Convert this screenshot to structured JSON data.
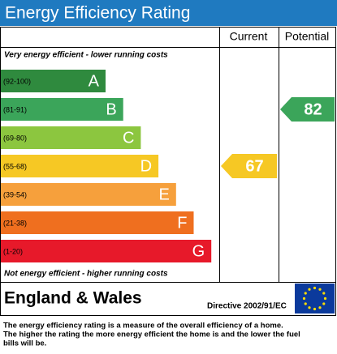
{
  "title": "Energy Efficiency Rating",
  "columns": {
    "current": "Current",
    "potential": "Potential"
  },
  "top_note": "Very energy efficient - lower running costs",
  "bottom_note": "Not energy efficient - higher running costs",
  "bands": [
    {
      "range": "(92-100)",
      "letter": "A",
      "color": "#2f8a3e"
    },
    {
      "range": "(81-91)",
      "letter": "B",
      "color": "#3ba55a"
    },
    {
      "range": "(69-80)",
      "letter": "C",
      "color": "#8cc63f"
    },
    {
      "range": "(55-68)",
      "letter": "D",
      "color": "#f6c824"
    },
    {
      "range": "(39-54)",
      "letter": "E",
      "color": "#f6a03c"
    },
    {
      "range": "(21-38)",
      "letter": "F",
      "color": "#ef6f1f"
    },
    {
      "range": "(1-20)",
      "letter": "G",
      "color": "#e7192a"
    }
  ],
  "current": {
    "value": 67,
    "color": "#f6c824"
  },
  "potential": {
    "value": 82,
    "color": "#3ba55a"
  },
  "country": "England & Wales",
  "directive": "Directive 2002/91/EC",
  "footer": [
    "The energy efficiency rating is a measure of the overall efficiency of a home.",
    "The higher the rating the more energy efficient the home is and the lower the fuel",
    "bills will be."
  ]
}
